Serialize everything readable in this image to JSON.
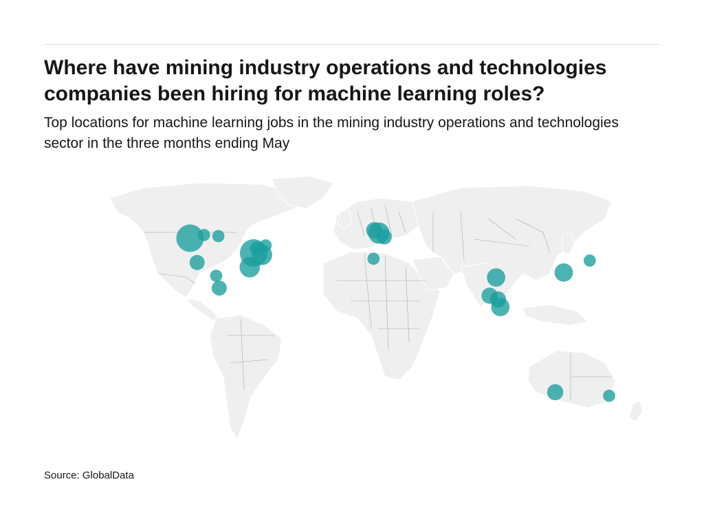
{
  "header": {
    "title": "Where have mining industry operations and technologies companies been hiring for machine learning roles?",
    "subtitle": "Top locations for machine learning jobs in the mining industry operations and technologies sector in the three months ending May"
  },
  "footer": {
    "source": "Source: GlobalData"
  },
  "colors": {
    "bubble": "#1a9e9e",
    "land": "#efefef",
    "border": "#8a8a8a"
  },
  "map": {
    "projection": "equirectangular-like world map",
    "bubbles": [
      {
        "lat": 49.3,
        "lon": -123.1,
        "size": 1.0
      },
      {
        "lat": 51.0,
        "lon": -114.0,
        "size": 0.2
      },
      {
        "lat": 50.4,
        "lon": -104.6,
        "size": 0.2
      },
      {
        "lat": 41.5,
        "lon": -81.5,
        "size": 1.0
      },
      {
        "lat": 40.5,
        "lon": -76.0,
        "size": 0.55
      },
      {
        "lat": 44.0,
        "lon": -79.5,
        "size": 0.25
      },
      {
        "lat": 45.5,
        "lon": -73.6,
        "size": 0.2
      },
      {
        "lat": 34.0,
        "lon": -84.0,
        "size": 0.55
      },
      {
        "lat": 36.5,
        "lon": -118.5,
        "size": 0.3
      },
      {
        "lat": 29.5,
        "lon": -106.0,
        "size": 0.2
      },
      {
        "lat": 23.0,
        "lon": -104.0,
        "size": 0.3
      },
      {
        "lat": 53.5,
        "lon": -2.5,
        "size": 0.35
      },
      {
        "lat": 52.0,
        "lon": 0.5,
        "size": 0.6
      },
      {
        "lat": 50.0,
        "lon": 4.0,
        "size": 0.3
      },
      {
        "lat": 38.5,
        "lon": -3.0,
        "size": 0.2
      },
      {
        "lat": 28.6,
        "lon": 77.2,
        "size": 0.45
      },
      {
        "lat": 19.0,
        "lon": 73.0,
        "size": 0.35
      },
      {
        "lat": 17.0,
        "lon": 78.5,
        "size": 0.35
      },
      {
        "lat": 13.0,
        "lon": 80.0,
        "size": 0.45
      },
      {
        "lat": 31.2,
        "lon": 121.5,
        "size": 0.45
      },
      {
        "lat": 37.5,
        "lon": 138.5,
        "size": 0.2
      },
      {
        "lat": -31.9,
        "lon": 115.9,
        "size": 0.35
      },
      {
        "lat": -33.8,
        "lon": 151.2,
        "size": 0.2
      }
    ]
  }
}
